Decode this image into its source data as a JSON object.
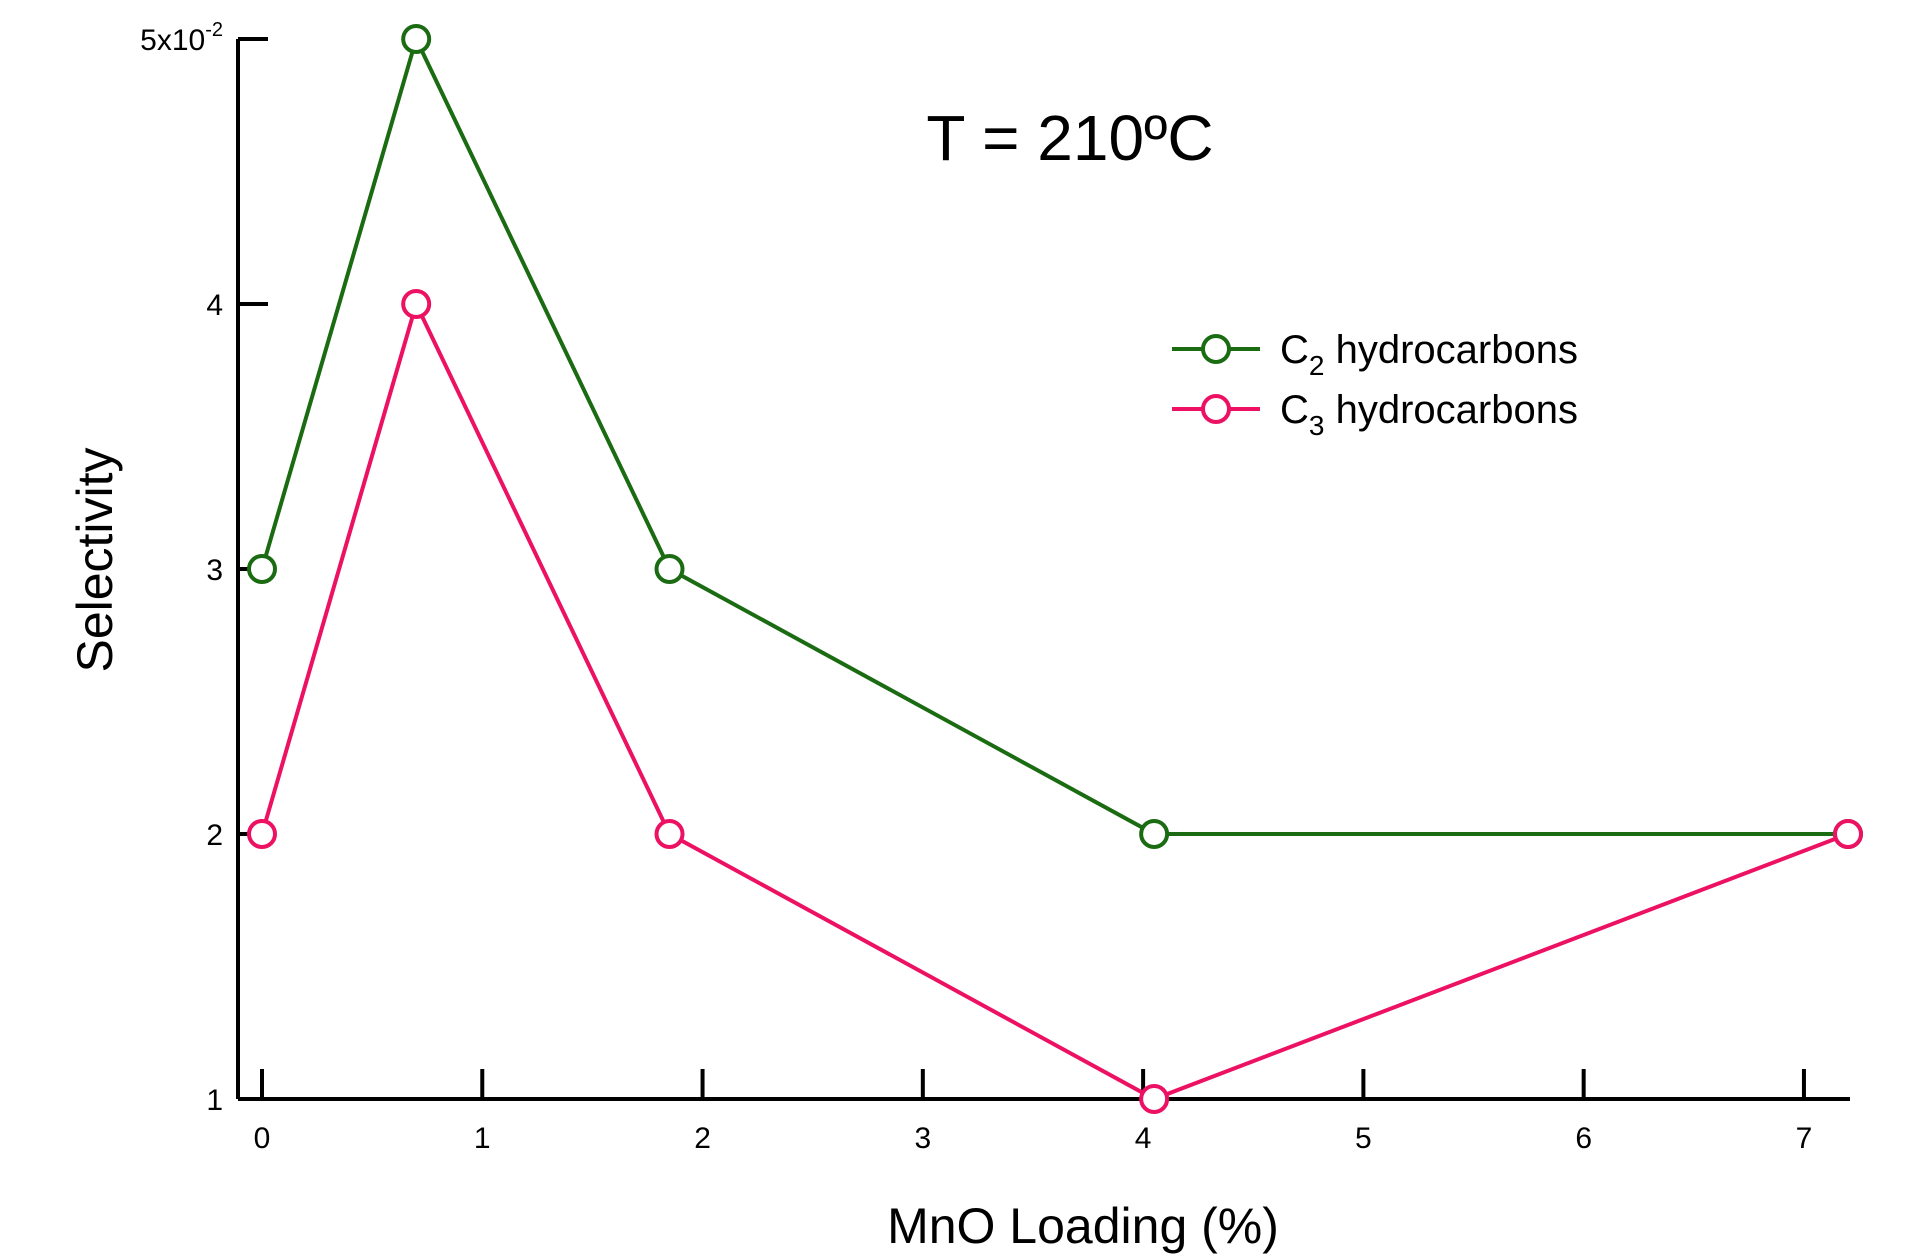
{
  "chart_data": {
    "type": "line",
    "annotation": "T = 210ºC",
    "xlabel": "MnO Loading (%)",
    "ylabel": "Selectivity",
    "xlim": [
      -0.1,
      7.2
    ],
    "ylim": [
      1,
      5
    ],
    "x_ticks": [
      0,
      1,
      2,
      3,
      4,
      5,
      6,
      7
    ],
    "x_tick_labels": [
      "0",
      "1",
      "2",
      "3",
      "4",
      "5",
      "6",
      "7"
    ],
    "y_ticks": [
      1,
      2,
      3,
      4,
      5
    ],
    "y_tick_labels": [
      "1",
      "2",
      "3",
      "4",
      "5x10"
    ],
    "y_multiplier_exponent": "-2",
    "grid": false,
    "legend_position": "top-right",
    "series": [
      {
        "name_main": "C",
        "name_sub": "2",
        "name_rest": " hydrocarbons",
        "color": "#1a6b12",
        "x": [
          0,
          0.7,
          1.85,
          4.05,
          7.2
        ],
        "y": [
          3,
          5,
          3,
          2,
          2
        ]
      },
      {
        "name_main": "C",
        "name_sub": "3",
        "name_rest": " hydrocarbons",
        "color": "#ec1163",
        "x": [
          0,
          0.7,
          1.85,
          4.05,
          7.2
        ],
        "y": [
          2,
          4,
          2,
          1,
          2
        ]
      }
    ]
  }
}
